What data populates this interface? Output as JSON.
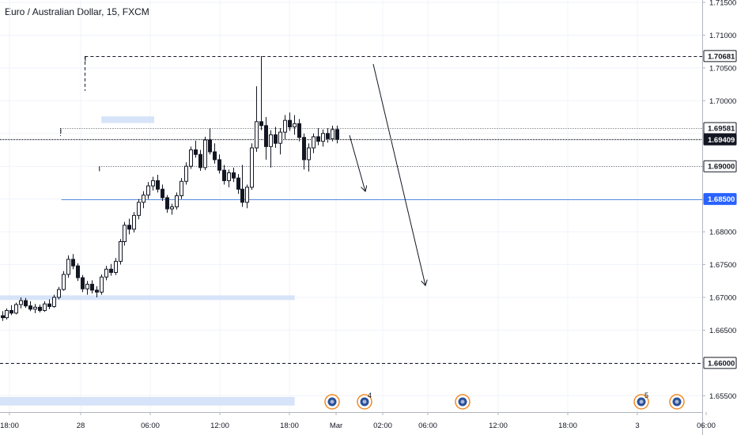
{
  "chart": {
    "title": "Euro / Australian Dollar, 15, FXCM"
  },
  "chart_data": {
    "type": "candlestick",
    "symbol": "Euro / Australian Dollar",
    "interval": "15",
    "source": "FXCM",
    "y_ticks": [
      "1.71500",
      "1.71000",
      "1.70500",
      "1.70000",
      "1.69500",
      "1.69000",
      "1.68500",
      "1.68000",
      "1.67500",
      "1.67000",
      "1.66500",
      "1.66000",
      "1.65500"
    ],
    "y_range": [
      1.6525,
      1.7155
    ],
    "x_ticks": [
      "18:00",
      "28",
      "06:00",
      "12:00",
      "18:00",
      "Mar",
      "02:00",
      "06:00",
      "12:00",
      "18:00",
      "3",
      "06:00"
    ],
    "price_labels": [
      {
        "text": "1.70681",
        "value": 1.70681,
        "style": "white"
      },
      {
        "text": "1.69581",
        "value": 1.69581,
        "style": "white"
      },
      {
        "text": "1.69409",
        "value": 1.69409,
        "style": "dark"
      },
      {
        "text": "1.69000",
        "value": 1.69,
        "style": "white"
      },
      {
        "text": "1.68500",
        "value": 1.685,
        "style": "blue"
      },
      {
        "text": "1.66000",
        "value": 1.66,
        "style": "white"
      }
    ],
    "horizontal_lines": [
      {
        "value": 1.70681,
        "style": "dashed",
        "start_time": 15.5
      },
      {
        "value": 1.69581,
        "style": "dotted",
        "start_time": 10.3
      },
      {
        "value": 1.69409,
        "style": "dotted-bold",
        "start_time": -14
      },
      {
        "value": 1.69,
        "style": "dotted",
        "start_time": 18.5
      },
      {
        "value": 1.685,
        "style": "solid-blue",
        "start_time": 10.5
      },
      {
        "value": 1.66,
        "style": "dashed",
        "start_time": -14
      }
    ],
    "zones": [
      {
        "from": 1.6966,
        "to": 1.6976,
        "start_time": 19,
        "end_time": 30.2
      },
      {
        "from": 1.6696,
        "to": 1.6703,
        "start_time": -14,
        "end_time": 60
      },
      {
        "from": 1.6535,
        "to": 1.6548,
        "start_time": -14,
        "end_time": 60
      }
    ],
    "arrows": [
      {
        "from": [
          21.25,
          1.6955
        ],
        "to": [
          22.75,
          1.686
        ]
      },
      {
        "from": [
          23.5,
          1.7058
        ],
        "to": [
          27.5,
          1.6715
        ]
      }
    ],
    "event_badges": [
      {
        "time": 20.0,
        "label": ""
      },
      {
        "time": 23.0,
        "label": "4"
      },
      {
        "time": 32.0,
        "label": ""
      },
      {
        "time": 50.0,
        "label": "5"
      },
      {
        "time": 53.0,
        "label": ""
      }
    ],
    "ohlc": [
      [
        1.6672,
        1.6679,
        1.6664,
        1.6669
      ],
      [
        1.6669,
        1.6683,
        1.6666,
        1.668
      ],
      [
        1.668,
        1.6688,
        1.6673,
        1.6676
      ],
      [
        1.6676,
        1.6692,
        1.6674,
        1.6689
      ],
      [
        1.6689,
        1.67,
        1.6683,
        1.6695
      ],
      [
        1.6695,
        1.6699,
        1.6684,
        1.6687
      ],
      [
        1.6687,
        1.6694,
        1.6679,
        1.6682
      ],
      [
        1.6682,
        1.669,
        1.6676,
        1.6685
      ],
      [
        1.6685,
        1.6689,
        1.6677,
        1.668
      ],
      [
        1.668,
        1.6694,
        1.6678,
        1.669
      ],
      [
        1.669,
        1.6697,
        1.6682,
        1.6686
      ],
      [
        1.6686,
        1.6704,
        1.6684,
        1.67
      ],
      [
        1.67,
        1.6716,
        1.6697,
        1.6712
      ],
      [
        1.6712,
        1.674,
        1.671,
        1.6735
      ],
      [
        1.6735,
        1.6764,
        1.673,
        1.6758
      ],
      [
        1.6758,
        1.6766,
        1.6743,
        1.6748
      ],
      [
        1.6748,
        1.6752,
        1.6725,
        1.673
      ],
      [
        1.673,
        1.6734,
        1.6708,
        1.6713
      ],
      [
        1.6713,
        1.6725,
        1.6704,
        1.672
      ],
      [
        1.672,
        1.6726,
        1.6706,
        1.6711
      ],
      [
        1.6711,
        1.6717,
        1.67,
        1.6708
      ],
      [
        1.6708,
        1.6735,
        1.6704,
        1.6731
      ],
      [
        1.6731,
        1.6748,
        1.6726,
        1.6743
      ],
      [
        1.6743,
        1.6751,
        1.6733,
        1.6738
      ],
      [
        1.6738,
        1.676,
        1.6734,
        1.6755
      ],
      [
        1.6755,
        1.6789,
        1.675,
        1.6785
      ],
      [
        1.6785,
        1.6815,
        1.6779,
        1.681
      ],
      [
        1.681,
        1.682,
        1.6796,
        1.6804
      ],
      [
        1.6804,
        1.683,
        1.6799,
        1.6825
      ],
      [
        1.6825,
        1.685,
        1.6819,
        1.6845
      ],
      [
        1.6845,
        1.6862,
        1.6836,
        1.6856
      ],
      [
        1.6856,
        1.6876,
        1.685,
        1.687
      ],
      [
        1.687,
        1.6884,
        1.6863,
        1.6878
      ],
      [
        1.6878,
        1.6887,
        1.686,
        1.6865
      ],
      [
        1.6865,
        1.6872,
        1.6847,
        1.6852
      ],
      [
        1.6852,
        1.6856,
        1.6829,
        1.6835
      ],
      [
        1.6835,
        1.6843,
        1.6826,
        1.6838
      ],
      [
        1.6838,
        1.686,
        1.6834,
        1.6855
      ],
      [
        1.6855,
        1.6882,
        1.685,
        1.6877
      ],
      [
        1.6877,
        1.6906,
        1.6872,
        1.69
      ],
      [
        1.69,
        1.693,
        1.6896,
        1.6925
      ],
      [
        1.6925,
        1.6939,
        1.6913,
        1.6918
      ],
      [
        1.6918,
        1.6925,
        1.6893,
        1.6898
      ],
      [
        1.6898,
        1.6945,
        1.6894,
        1.694
      ],
      [
        1.694,
        1.6958,
        1.6918,
        1.6922
      ],
      [
        1.6922,
        1.6935,
        1.6904,
        1.691
      ],
      [
        1.691,
        1.6918,
        1.6889,
        1.6894
      ],
      [
        1.6894,
        1.6902,
        1.6872,
        1.6878
      ],
      [
        1.6878,
        1.6895,
        1.6868,
        1.689
      ],
      [
        1.689,
        1.6898,
        1.6876,
        1.6882
      ],
      [
        1.6882,
        1.6888,
        1.6858,
        1.6865
      ],
      [
        1.6865,
        1.6902,
        1.6838,
        1.6845
      ],
      [
        1.6845,
        1.6872,
        1.6836,
        1.6868
      ],
      [
        1.6868,
        1.6935,
        1.6864,
        1.6928
      ],
      [
        1.6928,
        1.7022,
        1.6922,
        1.6968
      ],
      [
        1.6968,
        1.7068,
        1.6955,
        1.6962
      ],
      [
        1.6962,
        1.6975,
        1.691,
        1.693
      ],
      [
        1.693,
        1.6955,
        1.6898,
        1.6948
      ],
      [
        1.6948,
        1.696,
        1.6928,
        1.6935
      ],
      [
        1.6935,
        1.6958,
        1.6918,
        1.6952
      ],
      [
        1.6952,
        1.6978,
        1.694,
        1.697
      ],
      [
        1.697,
        1.6982,
        1.6954,
        1.696
      ],
      [
        1.696,
        1.6978,
        1.6948,
        1.6965
      ],
      [
        1.6965,
        1.6972,
        1.6938,
        1.6944
      ],
      [
        1.6944,
        1.695,
        1.6895,
        1.691
      ],
      [
        1.691,
        1.6935,
        1.6892,
        1.6928
      ],
      [
        1.6928,
        1.695,
        1.692,
        1.6945
      ],
      [
        1.6945,
        1.6958,
        1.6932,
        1.6938
      ],
      [
        1.6938,
        1.6956,
        1.693,
        1.695
      ],
      [
        1.695,
        1.6958,
        1.6936,
        1.6942
      ],
      [
        1.6942,
        1.6962,
        1.6938,
        1.6956
      ],
      [
        1.6956,
        1.6962,
        1.6935,
        1.6941
      ]
    ]
  }
}
